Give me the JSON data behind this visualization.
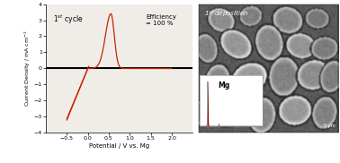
{
  "fig_width": 3.78,
  "fig_height": 1.82,
  "dpi": 100,
  "left_panel": {
    "title": "1$^{st}$ cycle",
    "efficiency_text": "Efficiency\n= 100 %",
    "xlabel": "Potential / V vs. Mg",
    "ylabel": "Current Density / mA cm$^{-2}$",
    "xlim": [
      -1,
      2.5
    ],
    "ylim": [
      -4,
      4
    ],
    "xticks": [
      -0.5,
      0,
      0.5,
      1,
      1.5,
      2
    ],
    "yticks": [
      -4,
      -3,
      -2,
      -1,
      0,
      1,
      2,
      3,
      4
    ],
    "curve_color": "#cc2200",
    "line_color": "#000000",
    "bg_color": "#f0ede8"
  },
  "right_panel": {
    "title": "1$^{st}$ deposition",
    "inset_label": "Mg",
    "inset_peak_color": "#cc2200"
  }
}
